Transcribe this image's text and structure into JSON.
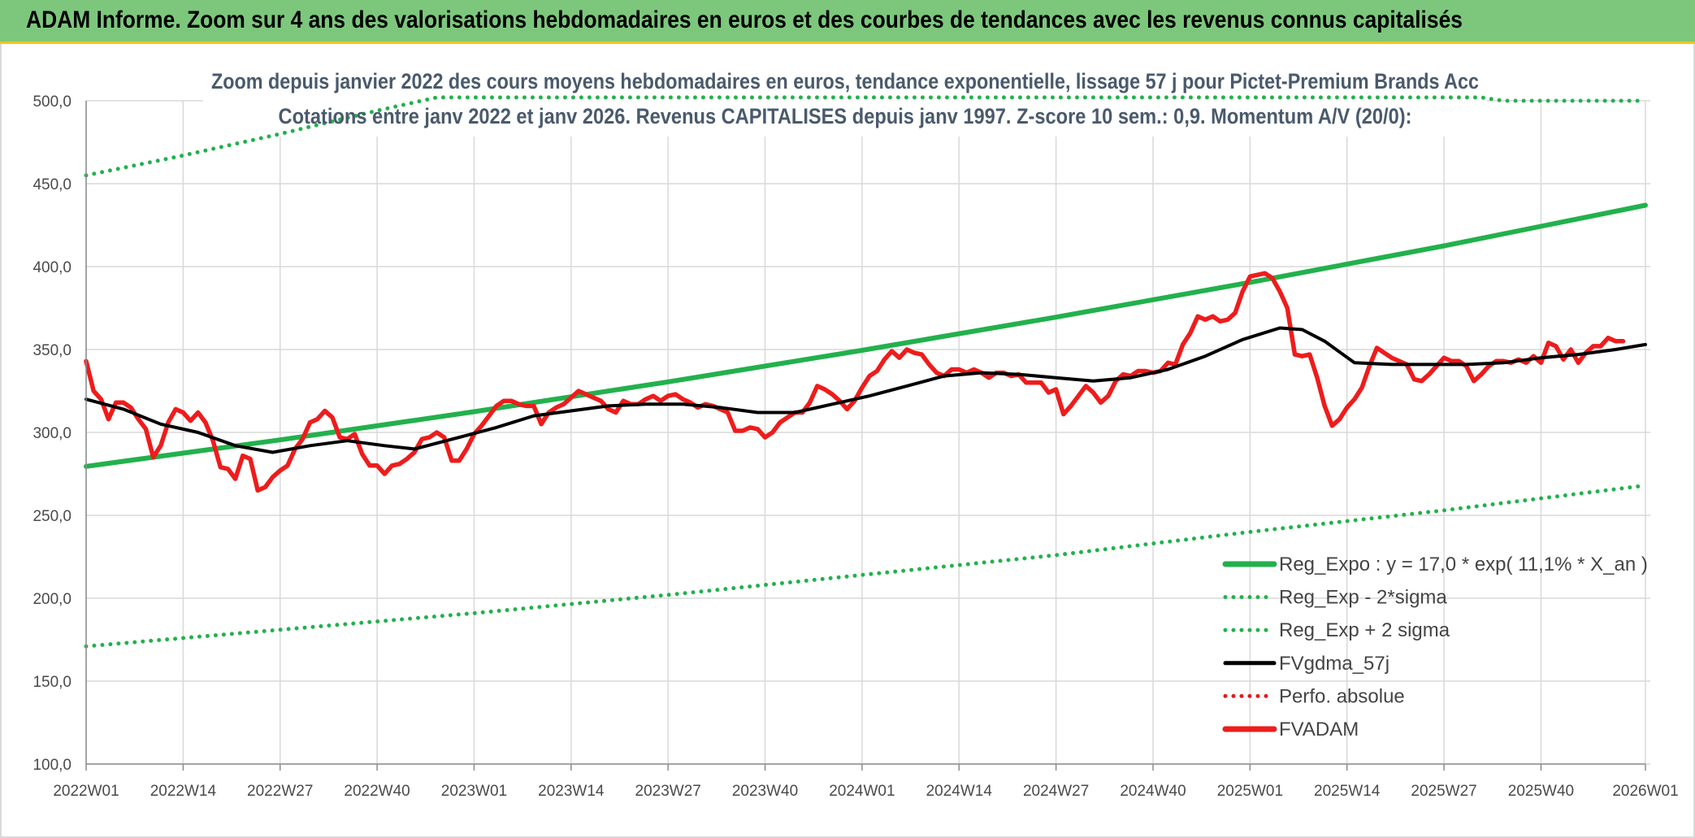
{
  "header": {
    "title": "ADAM Informe. Zoom sur 4 ans des valorisations hebdomadaires en euros et des courbes de tendances avec les revenus connus capitalisés"
  },
  "chart_data": {
    "type": "line",
    "title_lines": [
      "Zoom depuis janvier 2022 des cours moyens hebdomadaires en euros, tendance exponentielle, lissage 57 j pour Pictet-Premium Brands Acc",
      "Cotations entre janv 2022 et janv 2026. Revenus CAPITALISES depuis janv 1997. Z-score 10 sem.: 0,9. Momentum A/V (20/0):"
    ],
    "ylim": [
      100,
      500
    ],
    "y_ticks": [
      "500,0",
      "450,0",
      "400,0",
      "350,0",
      "300,0",
      "250,0",
      "200,0",
      "150,0",
      "100,0"
    ],
    "x_range": [
      0,
      209
    ],
    "x_ticks": [
      {
        "label": "2022W01",
        "x": 0
      },
      {
        "label": "2022W14",
        "x": 13
      },
      {
        "label": "2022W27",
        "x": 26
      },
      {
        "label": "2022W40",
        "x": 39
      },
      {
        "label": "2023W01",
        "x": 52
      },
      {
        "label": "2023W14",
        "x": 65
      },
      {
        "label": "2023W27",
        "x": 78
      },
      {
        "label": "2023W40",
        "x": 91
      },
      {
        "label": "2024W01",
        "x": 104
      },
      {
        "label": "2024W14",
        "x": 117
      },
      {
        "label": "2024W27",
        "x": 130
      },
      {
        "label": "2024W40",
        "x": 143
      },
      {
        "label": "2025W01",
        "x": 156
      },
      {
        "label": "2025W14",
        "x": 169
      },
      {
        "label": "2025W27",
        "x": 182
      },
      {
        "label": "2025W40",
        "x": 195
      },
      {
        "label": "2026W01",
        "x": 209
      }
    ],
    "grid": true,
    "legend_position": "bottom-right",
    "series": [
      {
        "name": "Reg_Expo : y = 17,0 * exp( 11,1% *  X_an )",
        "color": "#22b14c",
        "style": "solid",
        "points": [
          [
            0,
            279.5
          ],
          [
            26,
            295.5
          ],
          [
            52,
            312.5
          ],
          [
            78,
            330.5
          ],
          [
            104,
            349.5
          ],
          [
            130,
            369.5
          ],
          [
            156,
            390.5
          ],
          [
            182,
            412.5
          ],
          [
            209,
            437
          ]
        ]
      },
      {
        "name": "Reg_Exp - 2*sigma",
        "color": "#22b14c",
        "style": "dotted",
        "points": [
          [
            0,
            171
          ],
          [
            26,
            181
          ],
          [
            52,
            191
          ],
          [
            78,
            202
          ],
          [
            104,
            214
          ],
          [
            130,
            226
          ],
          [
            156,
            240
          ],
          [
            182,
            253
          ],
          [
            209,
            268
          ]
        ]
      },
      {
        "name": "Reg_Exp + 2 sigma",
        "color": "#22b14c",
        "style": "dotted",
        "points": [
          [
            0,
            455
          ],
          [
            13,
            467
          ],
          [
            26,
            480
          ],
          [
            39,
            494
          ],
          [
            47,
            502
          ],
          [
            187,
            502
          ],
          [
            190,
            500
          ],
          [
            209,
            500
          ]
        ]
      },
      {
        "name": "FVgdma_57j",
        "color": "#000000",
        "style": "solid",
        "points": [
          [
            0,
            320
          ],
          [
            5,
            314
          ],
          [
            10,
            305
          ],
          [
            15,
            300
          ],
          [
            20,
            292
          ],
          [
            25,
            288
          ],
          [
            30,
            292
          ],
          [
            35,
            295
          ],
          [
            40,
            292
          ],
          [
            44,
            290
          ],
          [
            50,
            297
          ],
          [
            55,
            303
          ],
          [
            60,
            310
          ],
          [
            65,
            313
          ],
          [
            70,
            316
          ],
          [
            75,
            317
          ],
          [
            80,
            317
          ],
          [
            85,
            315
          ],
          [
            90,
            312
          ],
          [
            95,
            312
          ],
          [
            100,
            317
          ],
          [
            105,
            322
          ],
          [
            110,
            328
          ],
          [
            115,
            334
          ],
          [
            120,
            336
          ],
          [
            125,
            335
          ],
          [
            130,
            333
          ],
          [
            135,
            331
          ],
          [
            140,
            333
          ],
          [
            145,
            338
          ],
          [
            150,
            346
          ],
          [
            155,
            356
          ],
          [
            160,
            363
          ],
          [
            163,
            362
          ],
          [
            166,
            355
          ],
          [
            170,
            342
          ],
          [
            175,
            341
          ],
          [
            180,
            341
          ],
          [
            185,
            341
          ],
          [
            190,
            342
          ],
          [
            195,
            345
          ],
          [
            200,
            347
          ],
          [
            205,
            350
          ],
          [
            209,
            353
          ]
        ]
      },
      {
        "name": "Perfo. absolue",
        "color": "#e41a1c",
        "style": "dotted",
        "points": []
      },
      {
        "name": "FVADAM",
        "color": "#ee1c1c",
        "style": "solid",
        "points": [
          [
            0,
            343
          ],
          [
            1,
            325
          ],
          [
            2,
            320
          ],
          [
            3,
            308
          ],
          [
            4,
            318
          ],
          [
            5,
            318
          ],
          [
            6,
            315
          ],
          [
            7,
            308
          ],
          [
            8,
            302
          ],
          [
            9,
            285
          ],
          [
            10,
            292
          ],
          [
            11,
            306
          ],
          [
            12,
            314
          ],
          [
            13,
            312
          ],
          [
            14,
            307
          ],
          [
            15,
            312
          ],
          [
            16,
            306
          ],
          [
            17,
            295
          ],
          [
            18,
            279
          ],
          [
            19,
            278
          ],
          [
            20,
            272
          ],
          [
            21,
            286
          ],
          [
            22,
            284
          ],
          [
            23,
            265
          ],
          [
            24,
            267
          ],
          [
            25,
            273
          ],
          [
            26,
            277
          ],
          [
            27,
            280
          ],
          [
            28,
            290
          ],
          [
            29,
            296
          ],
          [
            30,
            306
          ],
          [
            31,
            308
          ],
          [
            32,
            313
          ],
          [
            33,
            309
          ],
          [
            34,
            297
          ],
          [
            35,
            296
          ],
          [
            36,
            299
          ],
          [
            37,
            287
          ],
          [
            38,
            280
          ],
          [
            39,
            280
          ],
          [
            40,
            275
          ],
          [
            41,
            280
          ],
          [
            42,
            281
          ],
          [
            43,
            284
          ],
          [
            44,
            288
          ],
          [
            45,
            296
          ],
          [
            46,
            297
          ],
          [
            47,
            300
          ],
          [
            48,
            297
          ],
          [
            49,
            283
          ],
          [
            50,
            283
          ],
          [
            51,
            290
          ],
          [
            52,
            299
          ],
          [
            53,
            304
          ],
          [
            54,
            310
          ],
          [
            55,
            316
          ],
          [
            56,
            319
          ],
          [
            57,
            319
          ],
          [
            58,
            317
          ],
          [
            59,
            316
          ],
          [
            60,
            316
          ],
          [
            61,
            305
          ],
          [
            62,
            312
          ],
          [
            63,
            315
          ],
          [
            64,
            317
          ],
          [
            65,
            321
          ],
          [
            66,
            325
          ],
          [
            67,
            323
          ],
          [
            68,
            321
          ],
          [
            69,
            319
          ],
          [
            70,
            314
          ],
          [
            71,
            312
          ],
          [
            72,
            319
          ],
          [
            73,
            317
          ],
          [
            74,
            317
          ],
          [
            75,
            320
          ],
          [
            76,
            322
          ],
          [
            77,
            319
          ],
          [
            78,
            322
          ],
          [
            79,
            323
          ],
          [
            80,
            320
          ],
          [
            81,
            318
          ],
          [
            82,
            315
          ],
          [
            83,
            317
          ],
          [
            84,
            316
          ],
          [
            85,
            314
          ],
          [
            86,
            312
          ],
          [
            87,
            301
          ],
          [
            88,
            301
          ],
          [
            89,
            303
          ],
          [
            90,
            302
          ],
          [
            91,
            297
          ],
          [
            92,
            300
          ],
          [
            93,
            306
          ],
          [
            94,
            309
          ],
          [
            95,
            312
          ],
          [
            96,
            312
          ],
          [
            97,
            318
          ],
          [
            98,
            328
          ],
          [
            99,
            326
          ],
          [
            100,
            323
          ],
          [
            101,
            319
          ],
          [
            102,
            314
          ],
          [
            103,
            319
          ],
          [
            104,
            327
          ],
          [
            105,
            334
          ],
          [
            106,
            337
          ],
          [
            107,
            344
          ],
          [
            108,
            349
          ],
          [
            109,
            345
          ],
          [
            110,
            350
          ],
          [
            111,
            348
          ],
          [
            112,
            347
          ],
          [
            113,
            341
          ],
          [
            114,
            336
          ],
          [
            115,
            334
          ],
          [
            116,
            338
          ],
          [
            117,
            338
          ],
          [
            118,
            336
          ],
          [
            119,
            338
          ],
          [
            120,
            336
          ],
          [
            121,
            333
          ],
          [
            122,
            336
          ],
          [
            123,
            336
          ],
          [
            124,
            334
          ],
          [
            125,
            335
          ],
          [
            126,
            330
          ],
          [
            127,
            330
          ],
          [
            128,
            330
          ],
          [
            129,
            324
          ],
          [
            130,
            326
          ],
          [
            131,
            311
          ],
          [
            132,
            316
          ],
          [
            133,
            322
          ],
          [
            134,
            328
          ],
          [
            135,
            324
          ],
          [
            136,
            318
          ],
          [
            137,
            322
          ],
          [
            138,
            331
          ],
          [
            139,
            335
          ],
          [
            140,
            334
          ],
          [
            141,
            337
          ],
          [
            142,
            337
          ],
          [
            143,
            336
          ],
          [
            144,
            337
          ],
          [
            145,
            342
          ],
          [
            146,
            341
          ],
          [
            147,
            353
          ],
          [
            148,
            360
          ],
          [
            149,
            370
          ],
          [
            150,
            368
          ],
          [
            151,
            370
          ],
          [
            152,
            367
          ],
          [
            153,
            368
          ],
          [
            154,
            372
          ],
          [
            155,
            385
          ],
          [
            156,
            394
          ],
          [
            157,
            395
          ],
          [
            158,
            396
          ],
          [
            159,
            393
          ],
          [
            160,
            385
          ],
          [
            161,
            375
          ],
          [
            162,
            347
          ],
          [
            163,
            346
          ],
          [
            164,
            347
          ],
          [
            165,
            333
          ],
          [
            166,
            316
          ],
          [
            167,
            304
          ],
          [
            168,
            308
          ],
          [
            169,
            315
          ],
          [
            170,
            320
          ],
          [
            171,
            327
          ],
          [
            172,
            340
          ],
          [
            173,
            351
          ],
          [
            174,
            348
          ],
          [
            175,
            345
          ],
          [
            176,
            343
          ],
          [
            177,
            341
          ],
          [
            178,
            332
          ],
          [
            179,
            331
          ],
          [
            180,
            335
          ],
          [
            181,
            340
          ],
          [
            182,
            345
          ],
          [
            183,
            343
          ],
          [
            184,
            343
          ],
          [
            185,
            340
          ],
          [
            186,
            331
          ],
          [
            187,
            335
          ],
          [
            188,
            340
          ],
          [
            189,
            343
          ],
          [
            190,
            343
          ],
          [
            191,
            342
          ],
          [
            192,
            344
          ],
          [
            193,
            342
          ],
          [
            194,
            346
          ],
          [
            195,
            342
          ],
          [
            196,
            354
          ],
          [
            197,
            352
          ],
          [
            198,
            344
          ],
          [
            199,
            350
          ],
          [
            200,
            342
          ],
          [
            201,
            348
          ],
          [
            202,
            352
          ],
          [
            203,
            352
          ],
          [
            204,
            357
          ],
          [
            205,
            355
          ],
          [
            206,
            355
          ]
        ]
      }
    ]
  }
}
